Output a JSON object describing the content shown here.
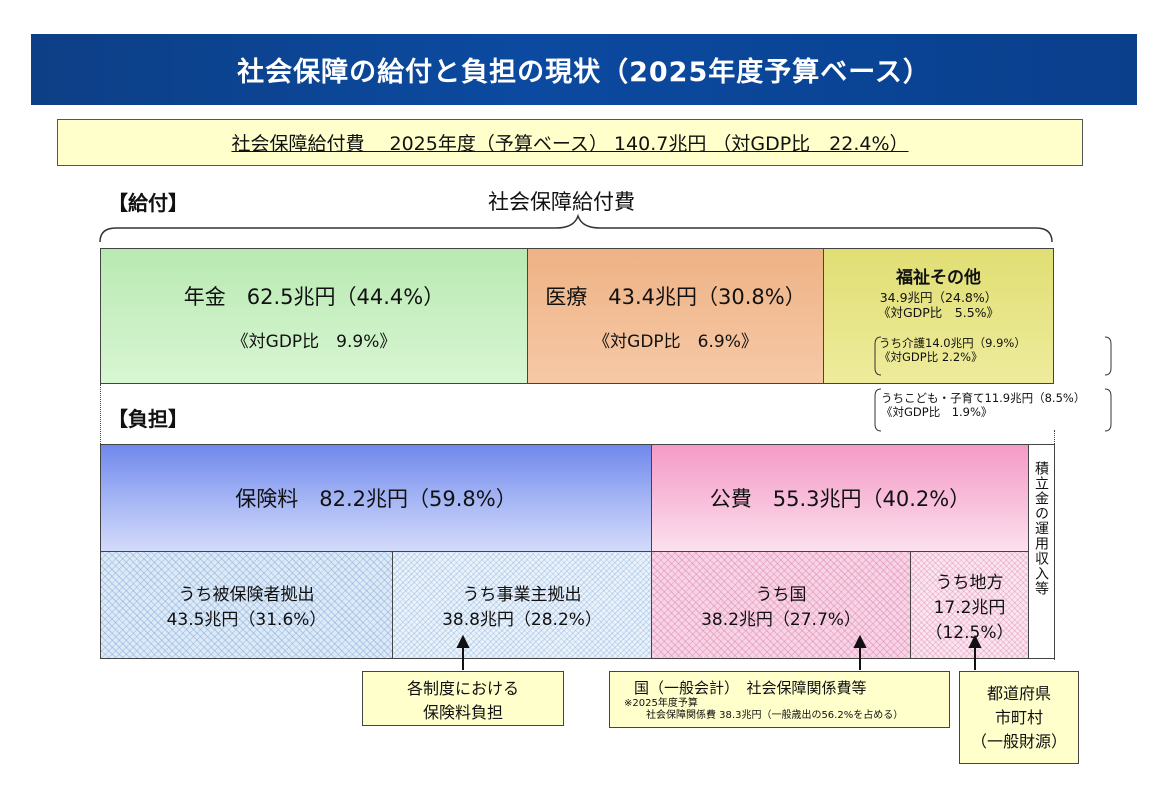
{
  "title": "社会保障の給付と負担の現状（2025年度予算ベース）",
  "summary": "社会保障給付費　 2025年度（予算ベース） 140.7兆円 （対GDP比　22.4%）",
  "benefit": {
    "section_label": "【給付】",
    "center_label": "社会保障給付費",
    "pension": {
      "line1": "年金　62.5兆円（44.4%）",
      "line2": "《対GDP比　9.9%》"
    },
    "medical": {
      "line1": "医療　43.4兆円（30.8%）",
      "line2": "《対GDP比　6.9%》"
    },
    "welfare": {
      "title": "福祉その他",
      "line1": "34.9兆円（24.8%）",
      "line2": "《対GDP比　5.5%》",
      "care_line1": "うち介護14.0兆円（9.9%）",
      "care_line2": "《対GDP比 2.2%》",
      "child_line1": "うちこども・子育て11.9兆円（8.5%）",
      "child_line2": "《対GDP比　1.9%》"
    }
  },
  "burden": {
    "section_label": "【負担】",
    "premium": "保険料　82.2兆円（59.8%）",
    "public": "公費　55.3兆円（40.2%）",
    "reserve": "積立金の運用収入等",
    "insured": {
      "line1": "うち被保険者拠出",
      "line2": "43.5兆円（31.6%）"
    },
    "employer": {
      "line1": "うち事業主拠出",
      "line2": "38.8兆円（28.2%）"
    },
    "national": {
      "line1": "うち国",
      "line2": "38.2兆円（27.7%）"
    },
    "local": {
      "line1": "うち地方",
      "line2": "17.2兆円",
      "line3": "（12.5%）"
    }
  },
  "callouts": {
    "premium_burden": {
      "line1": "各制度における",
      "line2": "保険料負担"
    },
    "national": {
      "line1": "国（一般会計）　社会保障関係費等",
      "note1": "※2025年度予算",
      "note2": "社会保障関係費 38.3兆円（一般歳出の56.2%を占める）"
    },
    "local": {
      "line1": "都道府県",
      "line2": "市町村",
      "line3": "（一般財源）"
    }
  },
  "colors": {
    "title_bg": "#0b4aa0",
    "pension": "#c9efc4",
    "medical": "#f0b98f",
    "welfare": "#e4e27e",
    "premium": "#7f97ee",
    "public": "#f7a9cf",
    "callout_bg": "#ffffcc"
  }
}
